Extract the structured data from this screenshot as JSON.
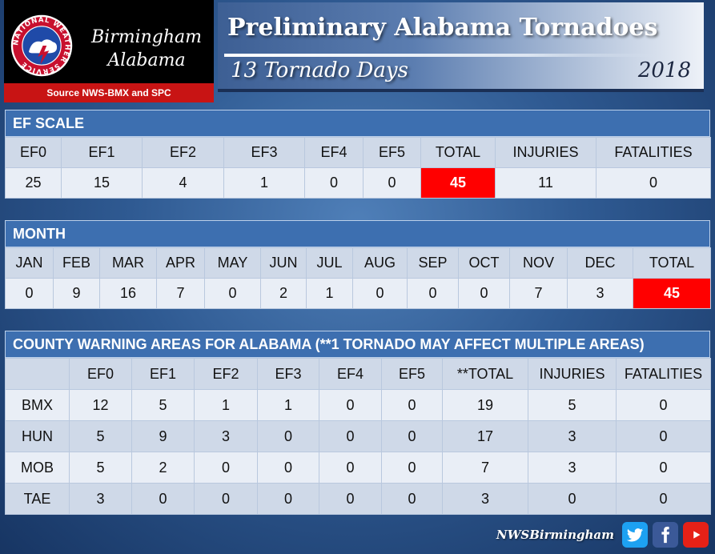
{
  "header": {
    "city_line1": "Birmingham",
    "city_line2": "Alabama",
    "source": "Source NWS-BMX and SPC",
    "seal_text": "NATIONAL WEATHER SERVICE",
    "title": "Preliminary Alabama Tornadoes",
    "subtitle": "13 Tornado Days",
    "year": "2018"
  },
  "ef_scale": {
    "heading": "EF SCALE",
    "columns": [
      "EF0",
      "EF1",
      "EF2",
      "EF3",
      "EF4",
      "EF5",
      "TOTAL",
      "INJURIES",
      "FATALITIES"
    ],
    "values": [
      "25",
      "15",
      "4",
      "1",
      "0",
      "0",
      "45",
      "11",
      "0"
    ]
  },
  "month": {
    "heading": "MONTH",
    "columns": [
      "JAN",
      "FEB",
      "MAR",
      "APR",
      "MAY",
      "JUN",
      "JUL",
      "AUG",
      "SEP",
      "OCT",
      "NOV",
      "DEC",
      "TOTAL"
    ],
    "values": [
      "0",
      "9",
      "16",
      "7",
      "0",
      "2",
      "1",
      "0",
      "0",
      "0",
      "7",
      "3",
      "45"
    ]
  },
  "cwa": {
    "heading": "COUNTY WARNING AREAS FOR ALABAMA (**1 TORNADO MAY AFFECT MULTIPLE AREAS)",
    "columns": [
      "",
      "EF0",
      "EF1",
      "EF2",
      "EF3",
      "EF4",
      "EF5",
      "**TOTAL",
      "INJURIES",
      "FATALITIES"
    ],
    "rows": [
      [
        "BMX",
        "12",
        "5",
        "1",
        "1",
        "0",
        "0",
        "19",
        "5",
        "0"
      ],
      [
        "HUN",
        "5",
        "9",
        "3",
        "0",
        "0",
        "0",
        "17",
        "3",
        "0"
      ],
      [
        "MOB",
        "5",
        "2",
        "0",
        "0",
        "0",
        "0",
        "7",
        "3",
        "0"
      ],
      [
        "TAE",
        "3",
        "0",
        "0",
        "0",
        "0",
        "0",
        "3",
        "0",
        "0"
      ]
    ]
  },
  "footer": {
    "handle": "NWSBirmingham",
    "icons": [
      "twitter-icon",
      "facebook-icon",
      "youtube-icon"
    ]
  },
  "colors": {
    "highlight": "#ff0000",
    "section_header": "#3d6fb0",
    "source_bar": "#c81414"
  }
}
